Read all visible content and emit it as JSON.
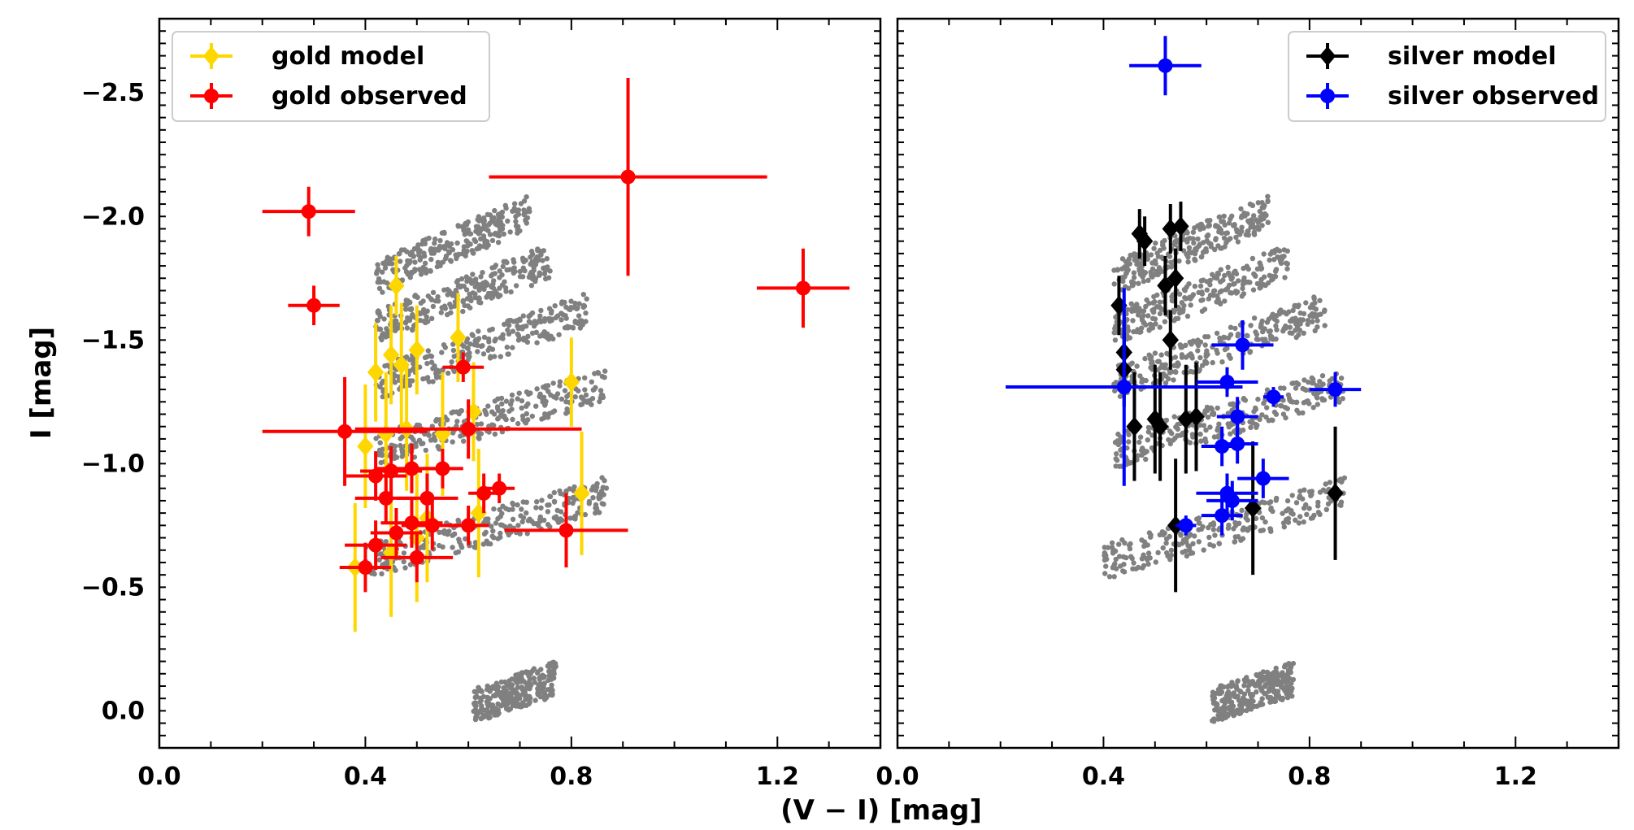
{
  "chart_data": [
    {
      "type": "scatter",
      "panel": "left",
      "xlabel": "(V − I) [mag]",
      "ylabel": "I [mag]",
      "xlim": [
        0.0,
        1.4
      ],
      "ylim": [
        0.15,
        -2.8
      ],
      "x_ticks": [
        0.0,
        0.4,
        0.8,
        1.2
      ],
      "x_tick_labels": [
        "0.0",
        "0.4",
        "0.8",
        "1.2"
      ],
      "y_ticks": [
        -2.5,
        -2.0,
        -1.5,
        -1.0,
        -0.5,
        0.0
      ],
      "y_tick_labels": [
        "−2.5",
        "−2.0",
        "−1.5",
        "−1.0",
        "−0.5",
        "0.0"
      ],
      "legend_position": "top-left",
      "background_bands": [
        {
          "x0": 0.42,
          "y0": -1.75,
          "x1": 0.72,
          "y1": -2.02
        },
        {
          "x0": 0.42,
          "y0": -1.55,
          "x1": 0.76,
          "y1": -1.82
        },
        {
          "x0": 0.42,
          "y0": -1.32,
          "x1": 0.83,
          "y1": -1.62
        },
        {
          "x0": 0.42,
          "y0": -1.05,
          "x1": 0.87,
          "y1": -1.32
        },
        {
          "x0": 0.4,
          "y0": -0.6,
          "x1": 0.87,
          "y1": -0.88
        },
        {
          "x0": 0.61,
          "y0": -0.02,
          "x1": 0.77,
          "y1": -0.13
        }
      ],
      "series": [
        {
          "name": "gold model",
          "color": "#ffd700",
          "marker": "diamond",
          "points": [
            {
              "x": 0.46,
              "y": -1.72,
              "ey": 0.12,
              "ex": 0.0
            },
            {
              "x": 0.45,
              "y": -1.44,
              "ey": 0.2,
              "ex": 0.0
            },
            {
              "x": 0.42,
              "y": -1.37,
              "ey": 0.2,
              "ex": 0.0
            },
            {
              "x": 0.47,
              "y": -1.4,
              "ey": 0.25,
              "ex": 0.0
            },
            {
              "x": 0.5,
              "y": -1.46,
              "ey": 0.18,
              "ex": 0.0
            },
            {
              "x": 0.58,
              "y": -1.51,
              "ey": 0.18,
              "ex": 0.0
            },
            {
              "x": 0.61,
              "y": -1.21,
              "ey": 0.2,
              "ex": 0.0
            },
            {
              "x": 0.4,
              "y": -1.07,
              "ey": 0.25,
              "ex": 0.0
            },
            {
              "x": 0.44,
              "y": -1.12,
              "ey": 0.25,
              "ex": 0.0
            },
            {
              "x": 0.48,
              "y": -1.14,
              "ey": 0.25,
              "ex": 0.0
            },
            {
              "x": 0.55,
              "y": -1.12,
              "ey": 0.25,
              "ex": 0.0
            },
            {
              "x": 0.8,
              "y": -1.33,
              "ey": 0.18,
              "ex": 0.0
            },
            {
              "x": 0.82,
              "y": -0.88,
              "ey": 0.25,
              "ex": 0.0
            },
            {
              "x": 0.38,
              "y": -0.58,
              "ey": 0.26,
              "ex": 0.0
            },
            {
              "x": 0.45,
              "y": -0.64,
              "ey": 0.26,
              "ex": 0.0
            },
            {
              "x": 0.5,
              "y": -0.7,
              "ey": 0.26,
              "ex": 0.0
            },
            {
              "x": 0.52,
              "y": -0.78,
              "ey": 0.26,
              "ex": 0.0
            },
            {
              "x": 0.62,
              "y": -0.8,
              "ey": 0.26,
              "ex": 0.0
            }
          ]
        },
        {
          "name": "gold observed",
          "color": "#ff0000",
          "marker": "circle",
          "points": [
            {
              "x": 0.29,
              "y": -2.02,
              "ex": 0.09,
              "ey": 0.1
            },
            {
              "x": 0.3,
              "y": -1.64,
              "ex": 0.05,
              "ey": 0.08
            },
            {
              "x": 0.91,
              "y": -2.16,
              "ex": 0.27,
              "ey": 0.4
            },
            {
              "x": 1.25,
              "y": -1.71,
              "ex": 0.09,
              "ey": 0.16
            },
            {
              "x": 0.36,
              "y": -1.13,
              "ex": 0.16,
              "ey": 0.22
            },
            {
              "x": 0.6,
              "y": -1.14,
              "ex": 0.22,
              "ey": 0.12
            },
            {
              "x": 0.59,
              "y": -1.39,
              "ex": 0.04,
              "ey": 0.06
            },
            {
              "x": 0.42,
              "y": -0.95,
              "ex": 0.06,
              "ey": 0.1
            },
            {
              "x": 0.45,
              "y": -0.97,
              "ex": 0.06,
              "ey": 0.1
            },
            {
              "x": 0.49,
              "y": -0.98,
              "ex": 0.07,
              "ey": 0.1
            },
            {
              "x": 0.55,
              "y": -0.98,
              "ex": 0.04,
              "ey": 0.08
            },
            {
              "x": 0.44,
              "y": -0.86,
              "ex": 0.06,
              "ey": 0.1
            },
            {
              "x": 0.52,
              "y": -0.86,
              "ex": 0.06,
              "ey": 0.1
            },
            {
              "x": 0.63,
              "y": -0.88,
              "ex": 0.03,
              "ey": 0.08
            },
            {
              "x": 0.66,
              "y": -0.9,
              "ex": 0.03,
              "ey": 0.06
            },
            {
              "x": 0.46,
              "y": -0.72,
              "ex": 0.05,
              "ey": 0.1
            },
            {
              "x": 0.49,
              "y": -0.76,
              "ex": 0.06,
              "ey": 0.1
            },
            {
              "x": 0.53,
              "y": -0.75,
              "ex": 0.06,
              "ey": 0.1
            },
            {
              "x": 0.6,
              "y": -0.75,
              "ex": 0.04,
              "ey": 0.08
            },
            {
              "x": 0.42,
              "y": -0.67,
              "ex": 0.06,
              "ey": 0.1
            },
            {
              "x": 0.4,
              "y": -0.58,
              "ex": 0.05,
              "ey": 0.1
            },
            {
              "x": 0.5,
              "y": -0.62,
              "ex": 0.07,
              "ey": 0.1
            },
            {
              "x": 0.79,
              "y": -0.73,
              "ex": 0.12,
              "ey": 0.15
            }
          ]
        }
      ]
    },
    {
      "type": "scatter",
      "panel": "right",
      "xlabel": "(V − I) [mag]",
      "ylabel": "",
      "xlim": [
        0.0,
        1.4
      ],
      "ylim": [
        0.15,
        -2.8
      ],
      "x_ticks": [
        0.0,
        0.4,
        0.8,
        1.2
      ],
      "x_tick_labels": [
        "0.0",
        "0.4",
        "0.8",
        "1.2"
      ],
      "y_ticks": [
        -2.5,
        -2.0,
        -1.5,
        -1.0,
        -0.5,
        0.0
      ],
      "y_tick_labels": [],
      "legend_position": "top-right",
      "background_bands": [
        {
          "x0": 0.42,
          "y0": -1.75,
          "x1": 0.72,
          "y1": -2.02
        },
        {
          "x0": 0.42,
          "y0": -1.55,
          "x1": 0.76,
          "y1": -1.82
        },
        {
          "x0": 0.42,
          "y0": -1.32,
          "x1": 0.83,
          "y1": -1.62
        },
        {
          "x0": 0.42,
          "y0": -1.05,
          "x1": 0.87,
          "y1": -1.32
        },
        {
          "x0": 0.4,
          "y0": -0.6,
          "x1": 0.87,
          "y1": -0.88
        },
        {
          "x0": 0.61,
          "y0": -0.02,
          "x1": 0.77,
          "y1": -0.13
        }
      ],
      "series": [
        {
          "name": "silver model",
          "color": "#000000",
          "marker": "diamond",
          "points": [
            {
              "x": 0.47,
              "y": -1.93,
              "ey": 0.1,
              "ex": 0.0
            },
            {
              "x": 0.48,
              "y": -1.9,
              "ey": 0.1,
              "ex": 0.0
            },
            {
              "x": 0.53,
              "y": -1.95,
              "ey": 0.1,
              "ex": 0.0
            },
            {
              "x": 0.55,
              "y": -1.96,
              "ey": 0.1,
              "ex": 0.0
            },
            {
              "x": 0.52,
              "y": -1.72,
              "ey": 0.12,
              "ex": 0.0
            },
            {
              "x": 0.54,
              "y": -1.75,
              "ey": 0.12,
              "ex": 0.0
            },
            {
              "x": 0.43,
              "y": -1.64,
              "ey": 0.12,
              "ex": 0.0
            },
            {
              "x": 0.53,
              "y": -1.5,
              "ey": 0.12,
              "ex": 0.0
            },
            {
              "x": 0.44,
              "y": -1.45,
              "ey": 0.15,
              "ex": 0.0
            },
            {
              "x": 0.44,
              "y": -1.38,
              "ey": 0.15,
              "ex": 0.0
            },
            {
              "x": 0.46,
              "y": -1.15,
              "ey": 0.22,
              "ex": 0.0
            },
            {
              "x": 0.5,
              "y": -1.18,
              "ey": 0.22,
              "ex": 0.0
            },
            {
              "x": 0.51,
              "y": -1.15,
              "ey": 0.22,
              "ex": 0.0
            },
            {
              "x": 0.56,
              "y": -1.18,
              "ey": 0.22,
              "ex": 0.0
            },
            {
              "x": 0.58,
              "y": -1.19,
              "ey": 0.22,
              "ex": 0.0
            },
            {
              "x": 0.54,
              "y": -0.75,
              "ey": 0.27,
              "ex": 0.0
            },
            {
              "x": 0.69,
              "y": -0.82,
              "ey": 0.27,
              "ex": 0.0
            },
            {
              "x": 0.85,
              "y": -0.88,
              "ey": 0.27,
              "ex": 0.0
            }
          ]
        },
        {
          "name": "silver observed",
          "color": "#0000ff",
          "marker": "circle",
          "points": [
            {
              "x": 0.52,
              "y": -2.61,
              "ex": 0.07,
              "ey": 0.12
            },
            {
              "x": 0.67,
              "y": -1.48,
              "ex": 0.06,
              "ey": 0.1
            },
            {
              "x": 0.44,
              "y": -1.31,
              "ex": 0.23,
              "ey": 0.4
            },
            {
              "x": 0.64,
              "y": -1.33,
              "ex": 0.06,
              "ey": 0.06
            },
            {
              "x": 0.73,
              "y": -1.27,
              "ex": 0.02,
              "ey": 0.04
            },
            {
              "x": 0.85,
              "y": -1.3,
              "ex": 0.05,
              "ey": 0.07
            },
            {
              "x": 0.66,
              "y": -1.19,
              "ex": 0.04,
              "ey": 0.08
            },
            {
              "x": 0.63,
              "y": -1.07,
              "ex": 0.04,
              "ey": 0.08
            },
            {
              "x": 0.66,
              "y": -1.08,
              "ex": 0.04,
              "ey": 0.08
            },
            {
              "x": 0.71,
              "y": -0.94,
              "ex": 0.05,
              "ey": 0.08
            },
            {
              "x": 0.64,
              "y": -0.88,
              "ex": 0.06,
              "ey": 0.08
            },
            {
              "x": 0.65,
              "y": -0.85,
              "ex": 0.05,
              "ey": 0.08
            },
            {
              "x": 0.63,
              "y": -0.79,
              "ex": 0.04,
              "ey": 0.08
            },
            {
              "x": 0.56,
              "y": -0.75,
              "ex": 0.02,
              "ey": 0.04
            }
          ]
        }
      ]
    }
  ],
  "shared_xlabel": "(V − I) [mag]",
  "ylabel": "I [mag]"
}
